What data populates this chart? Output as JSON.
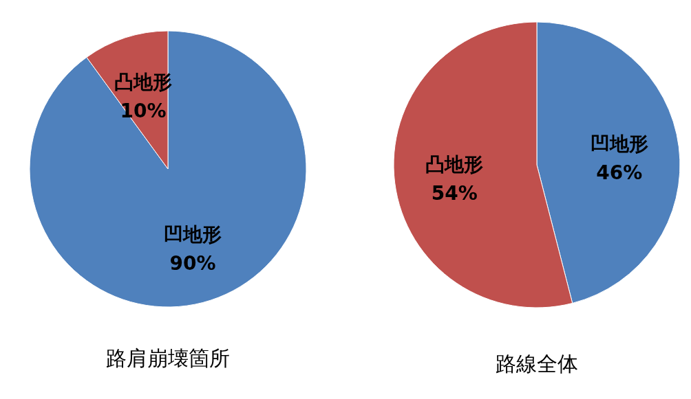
{
  "chart_data": [
    {
      "type": "pie",
      "title": "路肩崩壊箇所",
      "categories": [
        "凹地形",
        "凸地形"
      ],
      "values": [
        90,
        10
      ],
      "colors": [
        "#4f81bd",
        "#c0504d"
      ],
      "value_labels": [
        "90%",
        "10%"
      ]
    },
    {
      "type": "pie",
      "title": "路線全体",
      "categories": [
        "凹地形",
        "凸地形"
      ],
      "values": [
        46,
        54
      ],
      "colors": [
        "#4f81bd",
        "#c0504d"
      ],
      "value_labels": [
        "46%",
        "54%"
      ]
    }
  ]
}
